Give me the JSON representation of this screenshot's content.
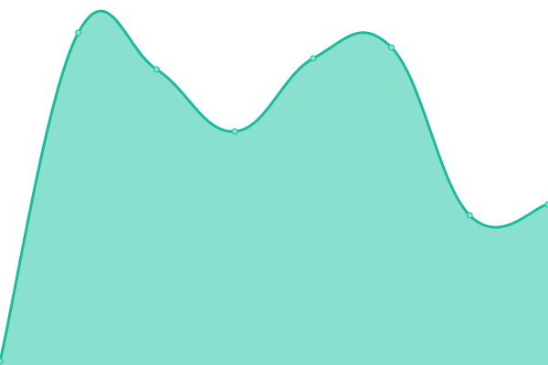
{
  "chart_data": {
    "type": "area",
    "x": [
      0,
      1,
      2,
      3,
      4,
      5,
      6,
      7
    ],
    "values": [
      1,
      91,
      81,
      64,
      84,
      87,
      41,
      44
    ],
    "ylim": [
      0,
      100
    ],
    "xlim": [
      0,
      7
    ],
    "smooth": true,
    "grid": false,
    "axes_visible": false,
    "colors": {
      "line": "#1abc9c",
      "fill": "#89e0cf",
      "point": "#89e0cf"
    }
  }
}
